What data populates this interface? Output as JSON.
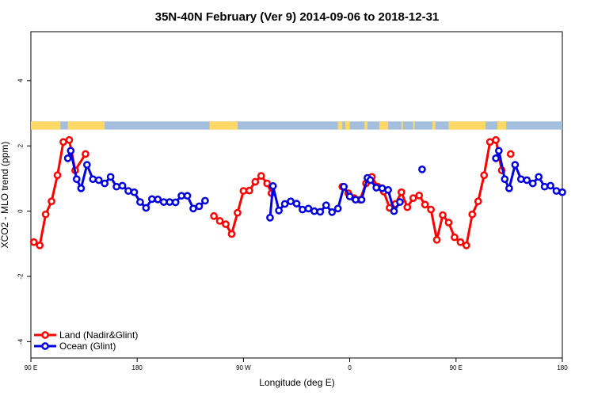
{
  "chart_data": {
    "type": "line",
    "title": "35N-40N February (Ver 9)   2014-09-06 to 2018-12-31",
    "xlabel": "Longitude (deg E)",
    "ylabel": "XCO2 - MLO trend (ppm)",
    "xlim": [
      90,
      450
    ],
    "ylim": [
      -4.5,
      5.5
    ],
    "x_ticks": [
      {
        "value": 90,
        "label": "90 E"
      },
      {
        "value": 162,
        "label": "180"
      },
      {
        "value": 234,
        "label": "90 W"
      },
      {
        "value": 306,
        "label": "0"
      },
      {
        "value": 378,
        "label": "90 E"
      },
      {
        "value": 450,
        "label": "180"
      }
    ],
    "y_ticks": [
      {
        "value": -4,
        "label": "-4"
      },
      {
        "value": -2,
        "label": "-2"
      },
      {
        "value": 0,
        "label": "0"
      },
      {
        "value": 2,
        "label": "2"
      },
      {
        "value": 4,
        "label": "4"
      }
    ],
    "legend_position": "bottom-left",
    "land_ocean_band": {
      "ymin": 2.5,
      "ymax": 2.75,
      "land_color": "#FFD966",
      "ocean_color": "#A4BEDD",
      "land_segments": [
        [
          90,
          110
        ],
        [
          115,
          140
        ],
        [
          211,
          230
        ],
        [
          298,
          301
        ],
        [
          303,
          306
        ],
        [
          316,
          318
        ],
        [
          326,
          332
        ],
        [
          341,
          342
        ],
        [
          349,
          350
        ],
        [
          362,
          364
        ],
        [
          373,
          398
        ],
        [
          406,
          412
        ]
      ]
    },
    "series": [
      {
        "name": "Land (Nadir&Glint)",
        "color": "#FF0000",
        "points": [
          [
            92,
            -0.95
          ],
          [
            96,
            -1.05
          ],
          [
            100,
            -0.1
          ],
          [
            104,
            0.3
          ],
          [
            108,
            1.1
          ],
          [
            112,
            2.12
          ],
          [
            116,
            2.18
          ],
          [
            120,
            1.25
          ],
          [
            127,
            1.75
          ],
          null,
          [
            214,
            -0.15
          ],
          [
            218,
            -0.3
          ],
          [
            222,
            -0.4
          ],
          [
            226,
            -0.7
          ],
          [
            230,
            -0.05
          ],
          [
            234,
            0.62
          ],
          [
            238,
            0.63
          ],
          [
            242,
            0.9
          ],
          [
            246,
            1.08
          ],
          [
            250,
            0.85
          ],
          [
            253,
            0.55
          ],
          null,
          [
            301,
            0.75
          ],
          [
            305,
            0.55
          ],
          [
            309,
            0.4
          ],
          [
            313,
            0.35
          ],
          [
            317,
            0.85
          ],
          [
            321,
            1.05
          ],
          [
            325,
            0.75
          ],
          [
            329,
            0.6
          ],
          [
            333,
            0.1
          ],
          [
            337,
            0.22
          ],
          [
            341,
            0.58
          ],
          [
            345,
            0.12
          ],
          [
            349,
            0.4
          ],
          [
            353,
            0.48
          ],
          [
            357,
            0.2
          ],
          [
            361,
            0.05
          ],
          [
            365,
            -0.88
          ],
          [
            369,
            -0.12
          ],
          [
            373,
            -0.35
          ],
          [
            377,
            -0.8
          ],
          [
            381,
            -0.95
          ],
          [
            385,
            -1.05
          ],
          [
            389,
            -0.1
          ],
          [
            393,
            0.3
          ],
          [
            397,
            1.1
          ],
          [
            401,
            2.12
          ],
          [
            405,
            2.18
          ],
          [
            409,
            1.25
          ],
          null,
          [
            415,
            1.75
          ]
        ]
      },
      {
        "name": "Ocean (Glint)",
        "color": "#0000E0",
        "points": [
          [
            115,
            1.62
          ],
          [
            117,
            1.85
          ],
          [
            121,
            0.98
          ],
          [
            124,
            0.7
          ],
          [
            128,
            1.42
          ],
          [
            132,
            0.98
          ],
          [
            136,
            0.95
          ],
          [
            140,
            0.85
          ],
          [
            144,
            1.05
          ],
          [
            148,
            0.75
          ],
          [
            152,
            0.78
          ],
          [
            156,
            0.62
          ],
          [
            160,
            0.58
          ],
          [
            164,
            0.28
          ],
          [
            168,
            0.1
          ],
          [
            172,
            0.37
          ],
          [
            176,
            0.36
          ],
          [
            180,
            0.28
          ],
          [
            184,
            0.28
          ],
          [
            188,
            0.27
          ],
          [
            192,
            0.47
          ],
          [
            196,
            0.47
          ],
          [
            200,
            0.08
          ],
          [
            204,
            0.15
          ],
          [
            208,
            0.32
          ],
          null,
          [
            252,
            -0.2
          ],
          [
            254,
            0.77
          ],
          [
            258,
            0.02
          ],
          [
            262,
            0.22
          ],
          [
            266,
            0.3
          ],
          [
            270,
            0.23
          ],
          [
            274,
            0.05
          ],
          [
            278,
            0.08
          ],
          [
            282,
            0.0
          ],
          [
            286,
            -0.02
          ],
          [
            290,
            0.18
          ],
          [
            294,
            -0.03
          ],
          [
            298,
            0.08
          ],
          [
            302,
            0.75
          ],
          [
            306,
            0.45
          ],
          [
            310,
            0.35
          ],
          [
            314,
            0.35
          ],
          [
            318,
            1.02
          ],
          [
            320,
            0.95
          ],
          [
            324,
            0.72
          ],
          [
            328,
            0.7
          ],
          [
            332,
            0.65
          ],
          [
            336,
            0.0
          ],
          [
            340,
            0.28
          ],
          null,
          [
            355,
            1.28
          ],
          null,
          [
            405,
            1.62
          ],
          [
            407,
            1.85
          ],
          [
            411,
            0.98
          ],
          [
            414,
            0.7
          ],
          [
            418,
            1.42
          ],
          [
            422,
            0.98
          ],
          [
            426,
            0.95
          ],
          [
            430,
            0.85
          ],
          [
            434,
            1.05
          ],
          [
            438,
            0.75
          ],
          [
            442,
            0.78
          ],
          [
            446,
            0.62
          ],
          [
            450,
            0.58
          ]
        ]
      }
    ]
  }
}
